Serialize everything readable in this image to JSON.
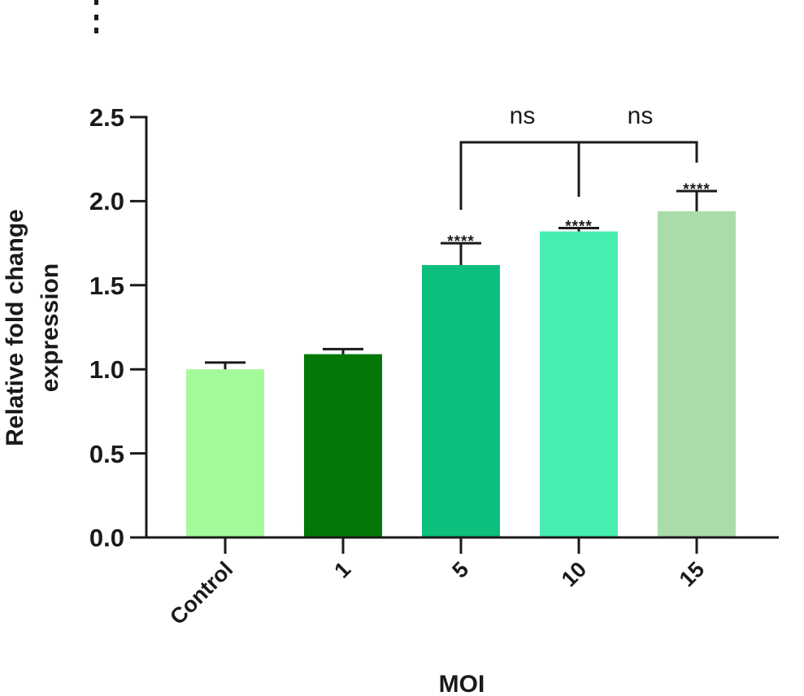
{
  "chart_data": {
    "type": "bar",
    "title": "",
    "xlabel": "MOI",
    "ylabel_lines": [
      "Relative fold change",
      "expression"
    ],
    "ylim": [
      0,
      2.5
    ],
    "yticks": [
      "0.0",
      "0.5",
      "1.0",
      "1.5",
      "2.0",
      "2.5"
    ],
    "categories": [
      "Control",
      "1",
      "5",
      "10",
      "15"
    ],
    "values": [
      1.0,
      1.09,
      1.62,
      1.82,
      1.94
    ],
    "errors": [
      0.04,
      0.03,
      0.13,
      0.02,
      0.12
    ],
    "colors": [
      "#A3FA9B",
      "#047806",
      "#0DBF7C",
      "#46EEAF",
      "#A9DCA9"
    ],
    "significance": [
      "",
      "",
      "****",
      "****",
      "****"
    ],
    "comparisons": [
      {
        "from": 2,
        "to": 3,
        "label": "ns"
      },
      {
        "from": 3,
        "to": 4,
        "label": "ns"
      }
    ],
    "grid": false,
    "legend": "none"
  }
}
